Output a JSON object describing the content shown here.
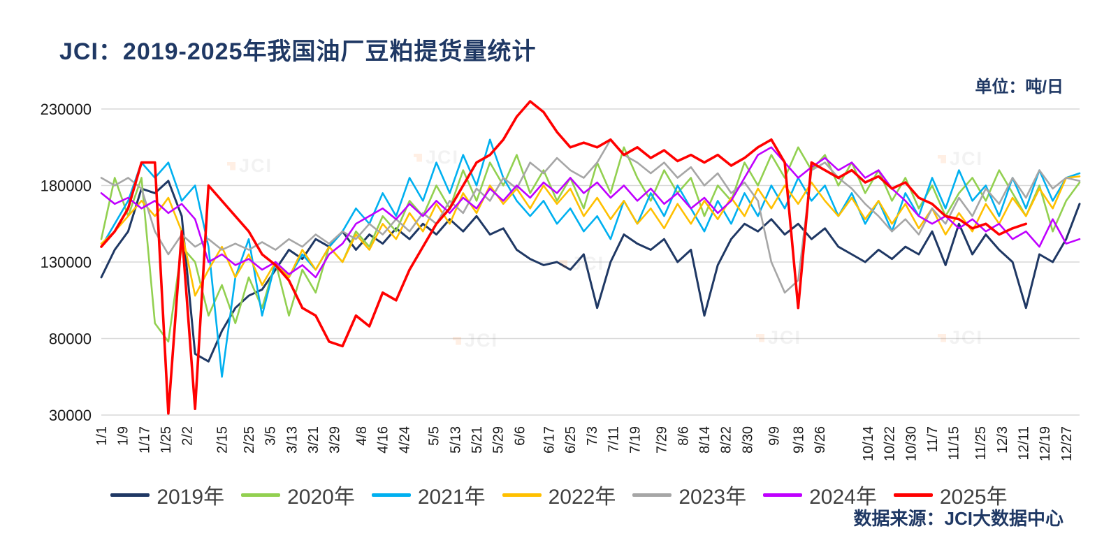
{
  "header": {
    "title": "JCI：2019-2025年我国油厂豆粕提货量统计",
    "unit_label": "单位：吨/日"
  },
  "footer": {
    "source": "数据来源：JCI大数据中心"
  },
  "watermark": "JCI",
  "chart_data": {
    "type": "line",
    "title": "JCI：2019-2025年我国油厂豆粕提货量统计",
    "unit": "吨/日",
    "ylabel": "",
    "xlabel": "",
    "ylim": [
      30000,
      230000
    ],
    "yticks": [
      30000,
      80000,
      130000,
      180000,
      230000
    ],
    "grid": "horizontal",
    "legend_position": "bottom",
    "x_domain_days": [
      0,
      365
    ],
    "sample_interval_days": 5,
    "xtick_labels": [
      "1/1",
      "1/9",
      "1/17",
      "1/25",
      "2/2",
      "2/15",
      "2/25",
      "3/5",
      "3/13",
      "3/21",
      "3/29",
      "4/8",
      "4/16",
      "4/24",
      "5/5",
      "5/13",
      "5/21",
      "5/29",
      "6/6",
      "6/17",
      "6/25",
      "7/3",
      "7/11",
      "7/19",
      "7/29",
      "8/6",
      "8/14",
      "8/22",
      "8/30",
      "9/9",
      "9/18",
      "9/26",
      "10/14",
      "10/22",
      "10/30",
      "11/7",
      "11/15",
      "11/25",
      "12/3",
      "12/11",
      "12/19",
      "12/27"
    ],
    "xtick_days": [
      0,
      8,
      16,
      24,
      32,
      45,
      55,
      63,
      71,
      79,
      87,
      97,
      105,
      113,
      124,
      132,
      140,
      148,
      156,
      167,
      175,
      183,
      191,
      199,
      209,
      217,
      225,
      233,
      241,
      251,
      260,
      268,
      286,
      294,
      302,
      310,
      318,
      328,
      336,
      344,
      352,
      360
    ],
    "series": [
      {
        "name": "2019年",
        "color": "#1f3864",
        "values": [
          120000,
          138000,
          150000,
          178000,
          175000,
          183000,
          160000,
          70000,
          65000,
          85000,
          100000,
          108000,
          112000,
          125000,
          138000,
          132000,
          145000,
          140000,
          150000,
          138000,
          148000,
          142000,
          152000,
          145000,
          155000,
          148000,
          158000,
          150000,
          160000,
          148000,
          152000,
          138000,
          132000,
          128000,
          130000,
          125000,
          135000,
          100000,
          130000,
          148000,
          142000,
          138000,
          145000,
          130000,
          138000,
          95000,
          128000,
          145000,
          155000,
          150000,
          158000,
          148000,
          155000,
          145000,
          152000,
          140000,
          135000,
          130000,
          138000,
          132000,
          140000,
          135000,
          150000,
          128000,
          155000,
          135000,
          148000,
          138000,
          130000,
          100000,
          135000,
          130000,
          145000,
          168000
        ]
      },
      {
        "name": "2020年",
        "color": "#92d050",
        "values": [
          145000,
          185000,
          160000,
          185000,
          90000,
          78000,
          140000,
          130000,
          95000,
          115000,
          90000,
          120000,
          100000,
          130000,
          95000,
          125000,
          110000,
          140000,
          130000,
          150000,
          140000,
          160000,
          150000,
          170000,
          160000,
          180000,
          165000,
          190000,
          170000,
          195000,
          180000,
          200000,
          175000,
          190000,
          170000,
          185000,
          165000,
          195000,
          175000,
          205000,
          185000,
          170000,
          190000,
          175000,
          185000,
          160000,
          180000,
          170000,
          195000,
          180000,
          200000,
          185000,
          205000,
          190000,
          200000,
          180000,
          195000,
          175000,
          190000,
          170000,
          185000,
          165000,
          180000,
          160000,
          175000,
          185000,
          170000,
          190000,
          175000,
          160000,
          180000,
          150000,
          170000,
          182000
        ]
      },
      {
        "name": "2021年",
        "color": "#00b0f0",
        "values": [
          140000,
          155000,
          170000,
          195000,
          185000,
          195000,
          170000,
          180000,
          140000,
          55000,
          120000,
          145000,
          95000,
          130000,
          120000,
          135000,
          125000,
          140000,
          150000,
          165000,
          155000,
          175000,
          160000,
          185000,
          170000,
          195000,
          175000,
          200000,
          180000,
          210000,
          185000,
          170000,
          160000,
          170000,
          155000,
          165000,
          150000,
          160000,
          145000,
          170000,
          155000,
          175000,
          160000,
          180000,
          165000,
          150000,
          170000,
          155000,
          175000,
          160000,
          180000,
          165000,
          185000,
          170000,
          180000,
          160000,
          175000,
          155000,
          170000,
          150000,
          175000,
          160000,
          185000,
          165000,
          190000,
          170000,
          180000,
          160000,
          185000,
          165000,
          190000,
          170000,
          185000,
          188000
        ]
      },
      {
        "name": "2022年",
        "color": "#ffc000",
        "values": [
          142000,
          150000,
          160000,
          170000,
          160000,
          172000,
          150000,
          108000,
          125000,
          140000,
          120000,
          135000,
          115000,
          130000,
          120000,
          138000,
          125000,
          140000,
          130000,
          148000,
          138000,
          155000,
          145000,
          162000,
          150000,
          168000,
          155000,
          175000,
          162000,
          180000,
          168000,
          178000,
          165000,
          180000,
          168000,
          178000,
          160000,
          172000,
          158000,
          170000,
          155000,
          165000,
          152000,
          168000,
          155000,
          170000,
          158000,
          172000,
          160000,
          178000,
          165000,
          180000,
          168000,
          182000,
          170000,
          160000,
          172000,
          158000,
          170000,
          155000,
          168000,
          152000,
          165000,
          148000,
          162000,
          150000,
          168000,
          155000,
          172000,
          160000,
          178000,
          165000,
          185000,
          186000
        ]
      },
      {
        "name": "2023年",
        "color": "#a6a6a6",
        "values": [
          185000,
          180000,
          185000,
          178000,
          150000,
          135000,
          148000,
          140000,
          145000,
          138000,
          142000,
          138000,
          143000,
          138000,
          145000,
          140000,
          148000,
          142000,
          150000,
          145000,
          155000,
          148000,
          158000,
          150000,
          162000,
          155000,
          170000,
          162000,
          178000,
          170000,
          185000,
          178000,
          195000,
          188000,
          198000,
          190000,
          185000,
          195000,
          210000,
          200000,
          195000,
          188000,
          195000,
          185000,
          192000,
          180000,
          188000,
          175000,
          182000,
          170000,
          130000,
          110000,
          118000,
          190000,
          195000,
          185000,
          178000,
          168000,
          160000,
          150000,
          158000,
          148000,
          165000,
          155000,
          172000,
          160000,
          178000,
          168000,
          185000,
          172000,
          190000,
          178000,
          185000,
          183000
        ]
      },
      {
        "name": "2024年",
        "color": "#bf00ff",
        "values": [
          175000,
          168000,
          172000,
          165000,
          170000,
          162000,
          168000,
          158000,
          130000,
          135000,
          128000,
          132000,
          125000,
          130000,
          122000,
          128000,
          120000,
          135000,
          142000,
          155000,
          160000,
          165000,
          158000,
          168000,
          160000,
          170000,
          162000,
          172000,
          165000,
          178000,
          170000,
          180000,
          172000,
          182000,
          175000,
          185000,
          175000,
          182000,
          172000,
          180000,
          170000,
          178000,
          168000,
          175000,
          165000,
          172000,
          162000,
          170000,
          185000,
          200000,
          205000,
          195000,
          185000,
          192000,
          198000,
          190000,
          195000,
          185000,
          190000,
          178000,
          170000,
          160000,
          155000,
          160000,
          152000,
          158000,
          150000,
          155000,
          145000,
          150000,
          140000,
          158000,
          142000,
          145000
        ]
      },
      {
        "name": "2025年",
        "color": "#ff0000",
        "values": [
          140000,
          150000,
          165000,
          195000,
          195000,
          31000,
          150000,
          34000,
          180000,
          170000,
          160000,
          150000,
          135000,
          128000,
          118000,
          100000,
          95000,
          78000,
          75000,
          95000,
          88000,
          110000,
          105000,
          125000,
          140000,
          155000,
          165000,
          180000,
          195000,
          200000,
          210000,
          225000,
          235000,
          228000,
          215000,
          205000,
          208000,
          205000,
          210000,
          200000,
          205000,
          198000,
          203000,
          196000,
          200000,
          195000,
          200000,
          193000,
          198000,
          205000,
          210000,
          195000,
          100000,
          195000,
          190000,
          185000,
          190000,
          182000,
          186000,
          178000,
          182000,
          172000,
          168000,
          160000,
          158000,
          152000,
          155000,
          148000,
          152000,
          155000,
          null,
          null,
          null,
          null
        ]
      }
    ]
  }
}
